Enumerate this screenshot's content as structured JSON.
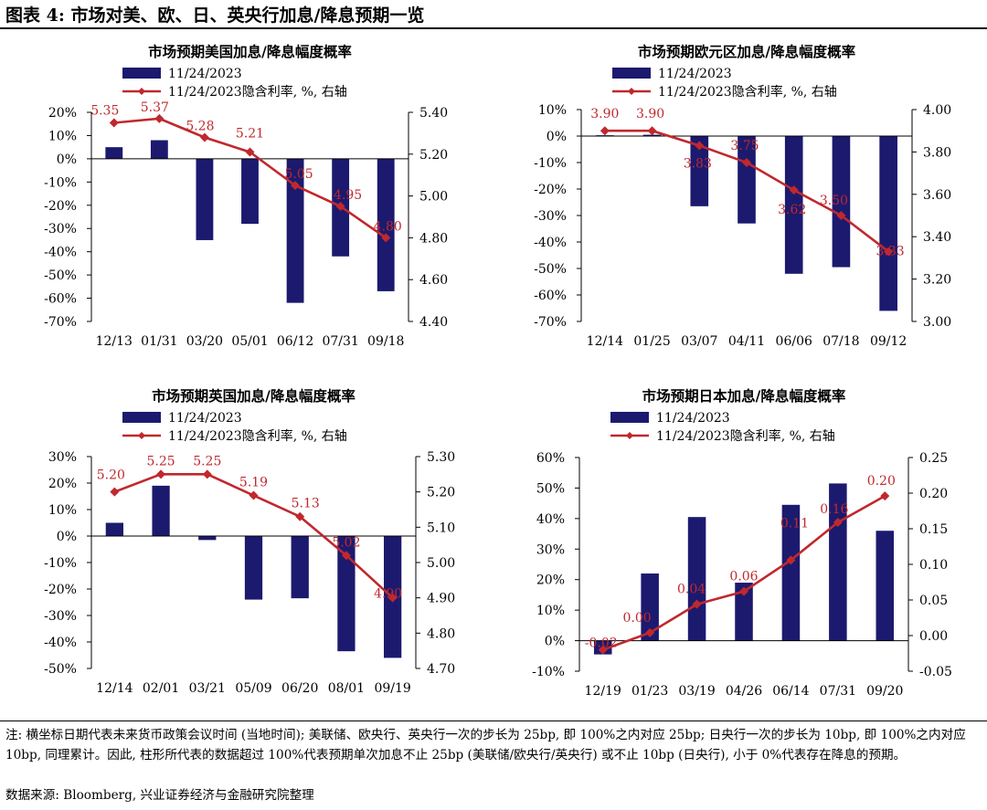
{
  "figure": {
    "title": "图表 4: 市场对美、欧、日、英央行加息/降息预期一览",
    "note": "注: 横坐标日期代表未来货币政策会议时间 (当地时间); 美联储、欧央行、英央行一次的步长为 25bp, 即 100%之内对应 25bp; 日央行一次的步长为 10bp, 即 100%之内对应 10bp, 同理累计。因此, 柱形所代表的数据超过 100%代表预期单次加息不止 25bp (美联储/欧央行/英央行) 或不止 10bp (日央行), 小于 0%代表存在降息的预期。",
    "source": "数据来源: Bloomberg, 兴业证券经济与金融研究院整理"
  },
  "colors": {
    "bar": "#1c1a6e",
    "line": "#c0282d",
    "axis": "#000000"
  },
  "chart_data": [
    {
      "type": "bar+line",
      "title": "市场预期美国加息/降息幅度概率",
      "categories": [
        "12/13",
        "01/31",
        "03/20",
        "05/01",
        "06/12",
        "07/31",
        "09/18"
      ],
      "series": [
        {
          "name": "11/24/2023",
          "type": "bar",
          "axis": "left",
          "values": [
            5,
            8,
            -35,
            -28,
            -62,
            -42,
            -57
          ]
        },
        {
          "name": "11/24/2023隐含利率, %, 右轴",
          "type": "line",
          "axis": "right",
          "values": [
            5.35,
            5.37,
            5.28,
            5.21,
            5.05,
            4.95,
            4.8
          ],
          "labels": [
            "5.35",
            "5.37",
            "5.28",
            "5.21",
            "5.05",
            "4.95",
            "4.80"
          ]
        }
      ],
      "left_axis": {
        "min": -70,
        "max": 20,
        "step": 10,
        "ticks": [
          "20%",
          "10%",
          "0%",
          "-10%",
          "-20%",
          "-30%",
          "-40%",
          "-50%",
          "-60%",
          "-70%"
        ]
      },
      "right_axis": {
        "min": 4.4,
        "max": 5.4,
        "step": 0.2,
        "ticks": [
          "5.40",
          "5.20",
          "5.00",
          "4.80",
          "4.60",
          "4.40"
        ]
      },
      "legend_position": "top",
      "grid": false
    },
    {
      "type": "bar+line",
      "title": "市场预期欧元区加息/降息幅度概率",
      "categories": [
        "12/14",
        "01/25",
        "03/07",
        "04/11",
        "06/06",
        "07/18",
        "09/12"
      ],
      "series": [
        {
          "name": "11/24/2023",
          "type": "bar",
          "axis": "left",
          "values": [
            0.3,
            0.5,
            -26.5,
            -33,
            -52,
            -49.5,
            -66
          ]
        },
        {
          "name": "11/24/2023隐含利率, %, 右轴",
          "type": "line",
          "axis": "right",
          "values": [
            3.9,
            3.9,
            3.83,
            3.75,
            3.62,
            3.5,
            3.33
          ],
          "labels": [
            "3.90",
            "3.90",
            "3.83",
            "3.75",
            "3.62",
            "3.50",
            "3.33"
          ]
        }
      ],
      "left_axis": {
        "min": -70,
        "max": 10,
        "step": 10,
        "ticks": [
          "10%",
          "0%",
          "-10%",
          "-20%",
          "-30%",
          "-40%",
          "-50%",
          "-60%",
          "-70%"
        ]
      },
      "right_axis": {
        "min": 3.0,
        "max": 4.0,
        "step": 0.2,
        "ticks": [
          "4.00",
          "3.80",
          "3.60",
          "3.40",
          "3.20",
          "3.00"
        ]
      },
      "legend_position": "top",
      "grid": false
    },
    {
      "type": "bar+line",
      "title": "市场预期英国加息/降息幅度概率",
      "categories": [
        "12/14",
        "02/01",
        "03/21",
        "05/09",
        "06/20",
        "08/01",
        "09/19"
      ],
      "series": [
        {
          "name": "11/24/2023",
          "type": "bar",
          "axis": "left",
          "values": [
            5,
            19,
            -1.5,
            -24,
            -23.5,
            -43.5,
            -46
          ]
        },
        {
          "name": "11/24/2023隐含利率, %, 右轴",
          "type": "line",
          "axis": "right",
          "values": [
            5.2,
            5.25,
            5.25,
            5.19,
            5.13,
            5.02,
            4.9
          ],
          "labels": [
            "5.20",
            "5.25",
            "5.25",
            "5.19",
            "5.13",
            "5.02",
            "4.90"
          ]
        }
      ],
      "left_axis": {
        "min": -50,
        "max": 30,
        "step": 10,
        "ticks": [
          "30%",
          "20%",
          "10%",
          "0%",
          "-10%",
          "-20%",
          "-30%",
          "-40%",
          "-50%"
        ]
      },
      "right_axis": {
        "min": 4.7,
        "max": 5.3,
        "step": 0.1,
        "ticks": [
          "5.30",
          "5.20",
          "5.10",
          "5.00",
          "4.90",
          "4.80",
          "4.70"
        ]
      },
      "legend_position": "top",
      "grid": false
    },
    {
      "type": "bar+line",
      "title": "市场预期日本加息/降息幅度概率",
      "categories": [
        "12/19",
        "01/23",
        "03/19",
        "04/26",
        "06/14",
        "07/31",
        "09/20"
      ],
      "series": [
        {
          "name": "11/24/2023",
          "type": "bar",
          "axis": "left",
          "values": [
            -4.5,
            22,
            40.5,
            19,
            44.5,
            51.5,
            36
          ]
        },
        {
          "name": "11/24/2023隐含利率, %, 右轴",
          "type": "line",
          "axis": "right",
          "values": [
            -0.02,
            0.004,
            0.044,
            0.062,
            0.106,
            0.159,
            0.196
          ],
          "labels": [
            "-0.02",
            "0.00",
            "0.04",
            "0.06",
            "0.11",
            "0.16",
            "0.20"
          ]
        }
      ],
      "left_axis": {
        "min": -10,
        "max": 60,
        "step": 10,
        "ticks": [
          "60%",
          "50%",
          "40%",
          "30%",
          "20%",
          "10%",
          "0%",
          "-10%"
        ]
      },
      "right_axis": {
        "min": -0.05,
        "max": 0.25,
        "step": 0.05,
        "ticks": [
          "0.25",
          "0.20",
          "0.15",
          "0.10",
          "0.05",
          "0.00",
          "-0.05"
        ]
      },
      "legend_position": "top",
      "grid": false
    }
  ]
}
